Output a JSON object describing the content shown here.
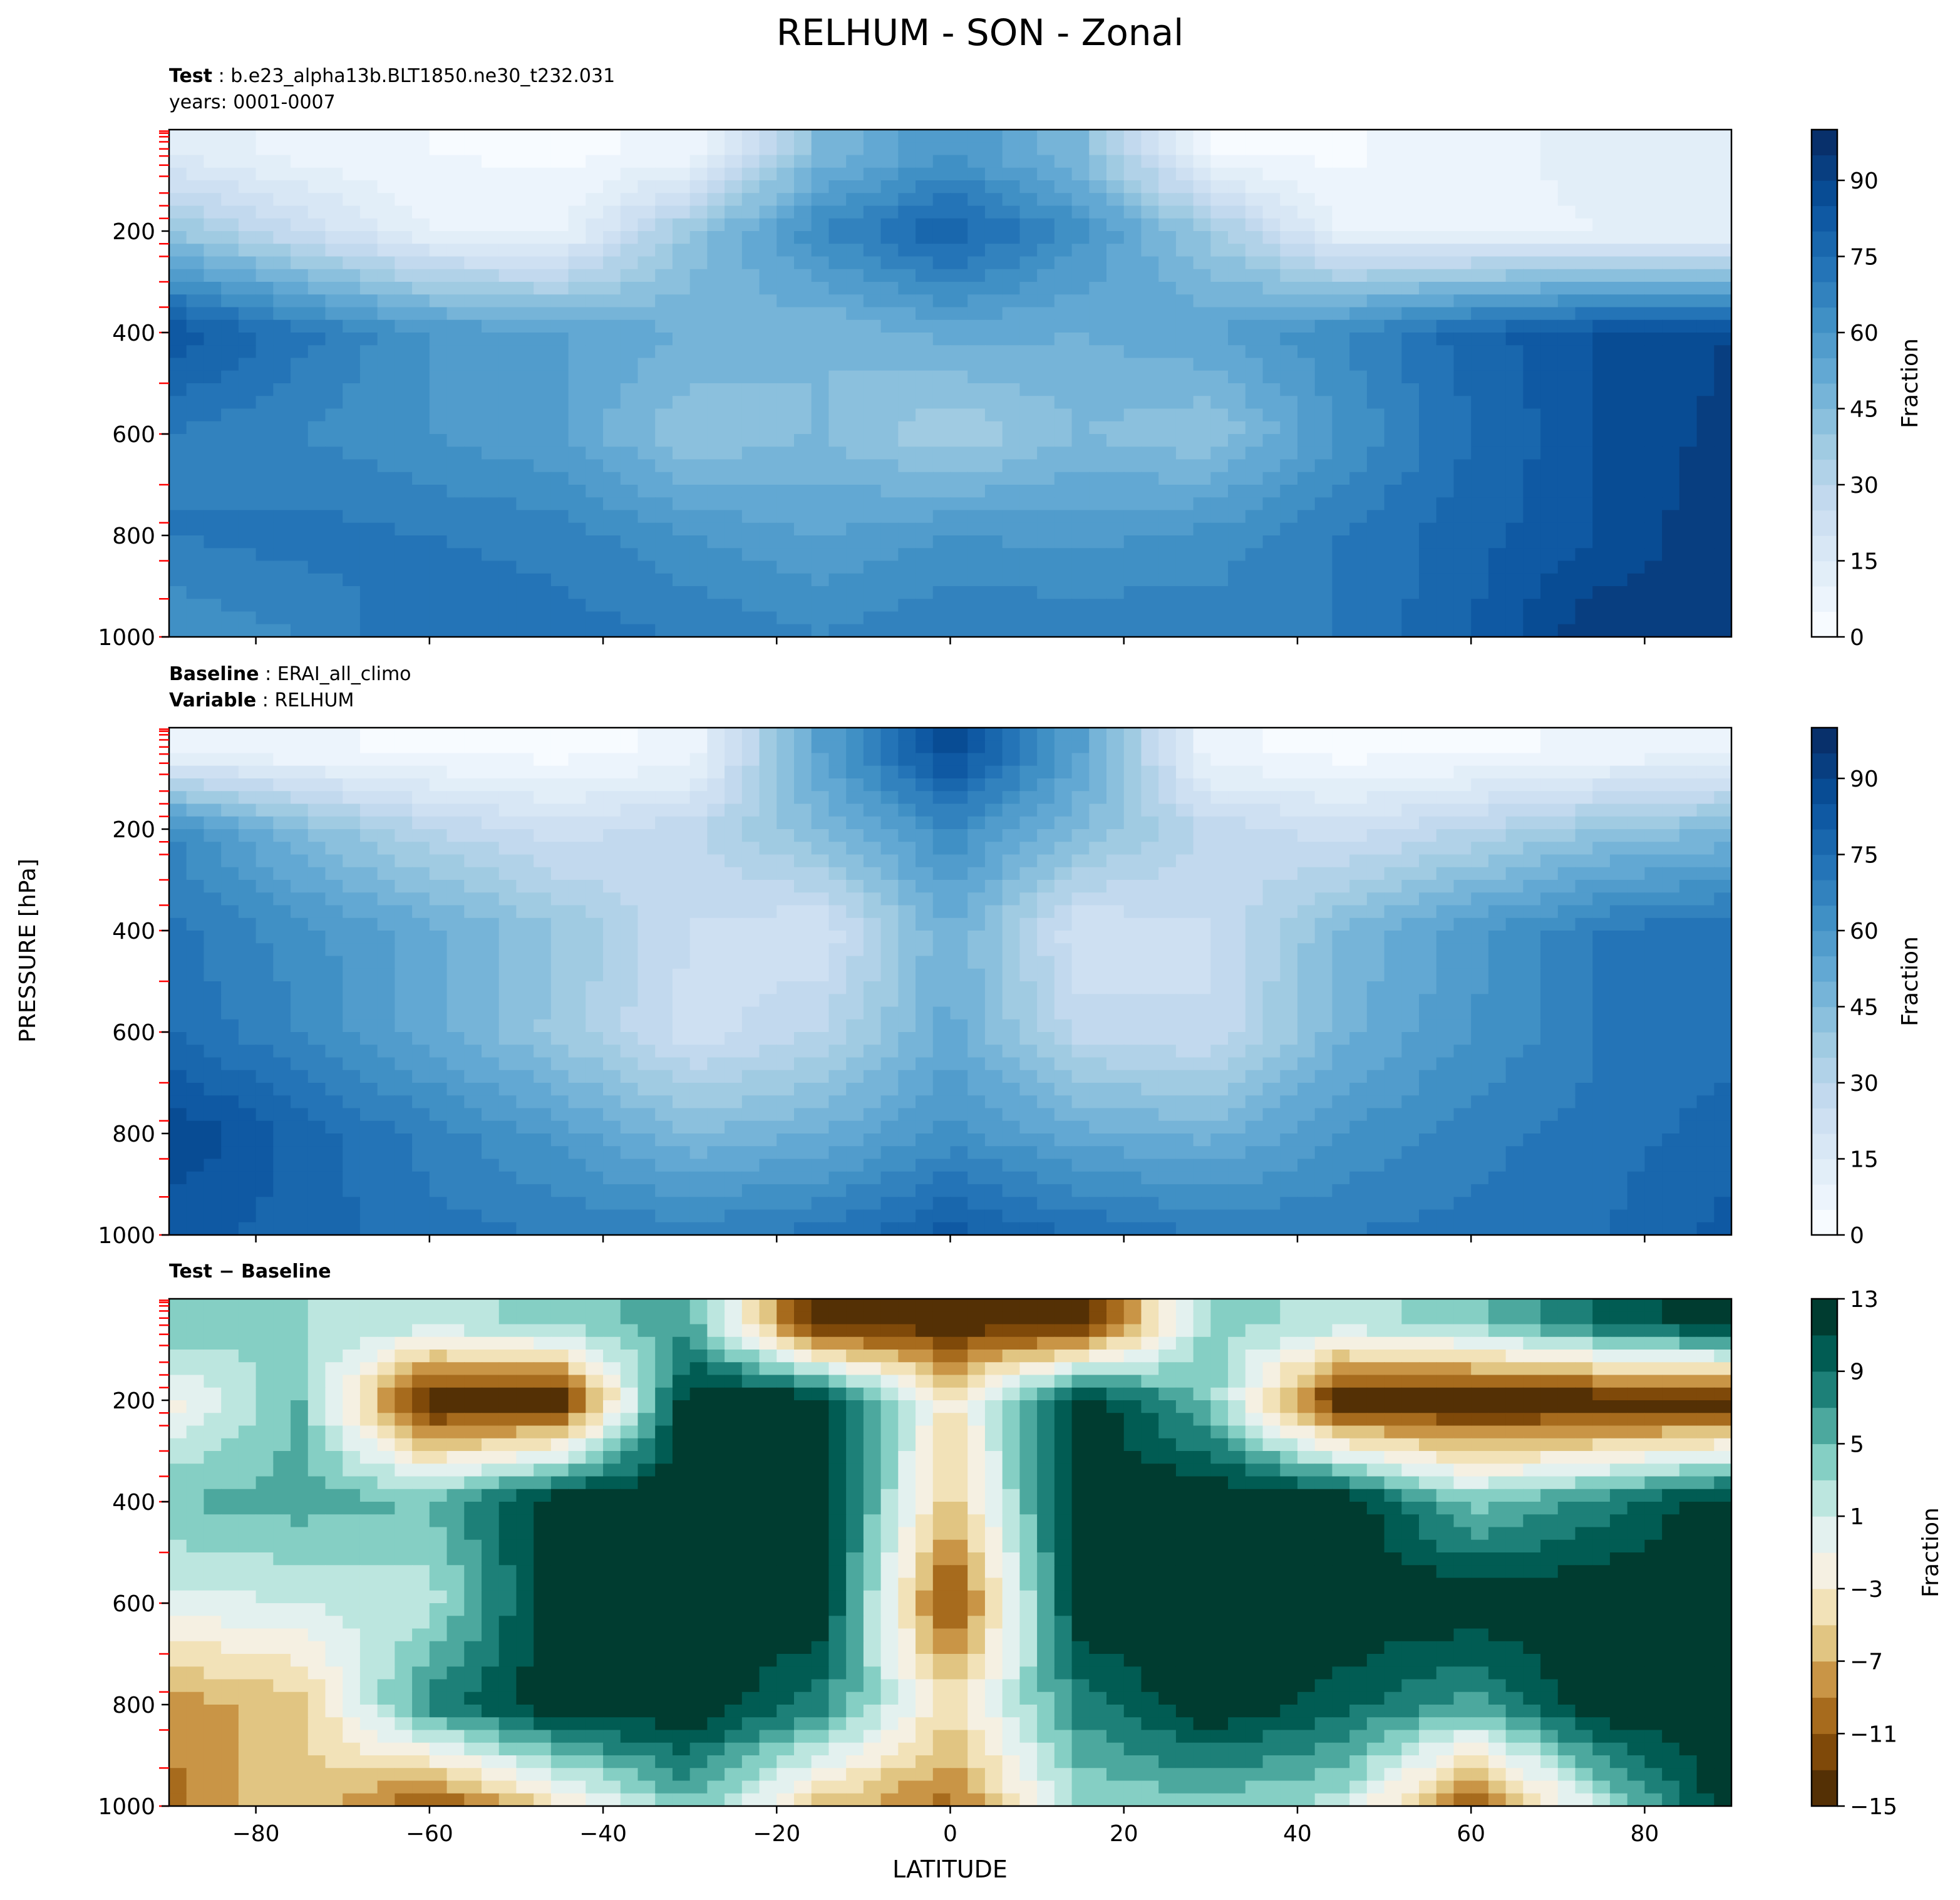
{
  "title": "RELHUM - SON - Zonal",
  "shared": {
    "ylabel": "PRESSURE [hPa]",
    "xlabel": "LATITUDE",
    "xticks": [
      -80,
      -60,
      -40,
      -20,
      0,
      20,
      40,
      60,
      80
    ],
    "xtick_labels": [
      "−80",
      "−60",
      "−40",
      "−20",
      "0",
      "20",
      "40",
      "60",
      "80"
    ],
    "xlim": [
      -90,
      90
    ],
    "yticks": [
      200,
      400,
      600,
      800,
      1000
    ],
    "ytick_labels": [
      "200",
      "400",
      "600",
      "800",
      "1000"
    ],
    "ylim": [
      1000,
      0
    ],
    "model_levels_marker_color": "#ff0000"
  },
  "panels": [
    {
      "id": "test",
      "header": [
        {
          "bold": "Test",
          "sep": " : ",
          "text": "b.e23_alpha13b.BLT1850.ne30_t232.031"
        },
        {
          "bold": "",
          "sep": "",
          "text": "years: 0001-0007"
        }
      ],
      "colorbar": {
        "label": "Fraction",
        "ticks": [
          "0",
          "15",
          "30",
          "45",
          "60",
          "75",
          "90"
        ],
        "cmap": "Blues",
        "range": [
          0,
          100
        ]
      }
    },
    {
      "id": "baseline",
      "header": [
        {
          "bold": "Baseline",
          "sep": " : ",
          "text": "ERAI_all_climo"
        },
        {
          "bold": "Variable",
          "sep": " : ",
          "text": "RELHUM"
        }
      ],
      "colorbar": {
        "label": "Fraction",
        "ticks": [
          "0",
          "15",
          "30",
          "45",
          "60",
          "75",
          "90"
        ],
        "cmap": "Blues",
        "range": [
          0,
          100
        ]
      }
    },
    {
      "id": "diff",
      "header": [
        {
          "bold": "Test − Baseline",
          "sep": "",
          "text": ""
        }
      ],
      "colorbar": {
        "label": "Fraction",
        "ticks": [
          "−15",
          "−11",
          "−7",
          "−3",
          "1",
          "5",
          "9",
          "13"
        ],
        "cmap": "BrBG",
        "range": [
          -15,
          13
        ]
      }
    }
  ],
  "chart_data": [
    {
      "type": "heatmap",
      "panel": "test",
      "x": [
        -90,
        -75,
        -60,
        -45,
        -30,
        -15,
        0,
        15,
        30,
        45,
        60,
        75,
        90
      ],
      "y": [
        50,
        200,
        400,
        600,
        800,
        1000
      ],
      "z": [
        [
          15,
          8,
          5,
          4,
          6,
          45,
          60,
          45,
          5,
          4,
          8,
          12,
          15
        ],
        [
          40,
          25,
          10,
          8,
          40,
          65,
          80,
          62,
          38,
          10,
          8,
          10,
          10
        ],
        [
          85,
          72,
          60,
          55,
          50,
          45,
          52,
          50,
          55,
          65,
          78,
          85,
          90
        ],
        [
          70,
          65,
          60,
          55,
          40,
          45,
          35,
          45,
          40,
          60,
          75,
          85,
          92
        ],
        [
          70,
          72,
          70,
          68,
          60,
          55,
          60,
          58,
          62,
          70,
          78,
          85,
          95
        ],
        [
          60,
          65,
          75,
          72,
          70,
          65,
          70,
          70,
          68,
          70,
          80,
          95,
          90
        ]
      ],
      "zrange": [
        0,
        100
      ]
    },
    {
      "type": "heatmap",
      "panel": "baseline",
      "x": [
        -90,
        -75,
        -60,
        -45,
        -30,
        -15,
        0,
        15,
        30,
        45,
        60,
        75,
        90
      ],
      "y": [
        50,
        200,
        400,
        600,
        800,
        1000
      ],
      "z": [
        [
          10,
          6,
          4,
          3,
          6,
          55,
          88,
          55,
          6,
          3,
          4,
          6,
          10
        ],
        [
          65,
          45,
          30,
          22,
          28,
          45,
          65,
          45,
          28,
          22,
          30,
          40,
          45
        ],
        [
          72,
          62,
          52,
          40,
          25,
          20,
          50,
          20,
          25,
          45,
          58,
          70,
          75
        ],
        [
          75,
          65,
          52,
          38,
          22,
          30,
          52,
          28,
          25,
          48,
          60,
          70,
          72
        ],
        [
          90,
          78,
          68,
          58,
          45,
          50,
          62,
          52,
          48,
          60,
          68,
          72,
          78
        ],
        [
          82,
          78,
          72,
          70,
          68,
          72,
          82,
          75,
          70,
          70,
          72,
          75,
          82
        ]
      ],
      "zrange": [
        0,
        100
      ]
    },
    {
      "type": "heatmap",
      "panel": "diff",
      "x": [
        -90,
        -75,
        -60,
        -45,
        -30,
        -15,
        0,
        15,
        30,
        45,
        60,
        75,
        90
      ],
      "y": [
        50,
        200,
        400,
        600,
        800,
        1000
      ],
      "z": [
        [
          5,
          3,
          2,
          4,
          6,
          -15,
          -14,
          -15,
          4,
          2,
          4,
          9,
          13
        ],
        [
          -2,
          5,
          -15,
          -15,
          13,
          13,
          -4,
          13,
          4,
          -15,
          -15,
          -15,
          -15
        ],
        [
          5,
          6,
          5,
          13,
          13,
          13,
          -6,
          13,
          13,
          13,
          4,
          8,
          13
        ],
        [
          0,
          1,
          2,
          13,
          13,
          13,
          -13,
          13,
          13,
          13,
          13,
          13,
          13
        ],
        [
          -8,
          -6,
          8,
          13,
          13,
          8,
          -4,
          8,
          13,
          10,
          6,
          13,
          13
        ],
        [
          -10,
          -5,
          -12,
          -4,
          5,
          -6,
          -10,
          3,
          4,
          2,
          -12,
          2,
          13
        ]
      ],
      "zrange": [
        -15,
        13
      ]
    }
  ]
}
